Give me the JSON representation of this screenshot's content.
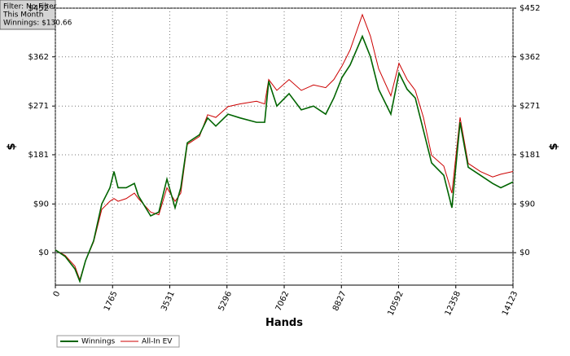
{
  "chart_data": {
    "type": "line",
    "info_lines": [
      "Filter: No Filter",
      "This Month",
      "Winnings: $130.66"
    ],
    "x_label": "Hands",
    "y_label": "$",
    "x": [
      0,
      302,
      603,
      754,
      930,
      1181,
      1432,
      1684,
      1809,
      1935,
      2186,
      2438,
      2563,
      2940,
      3192,
      3443,
      3694,
      3870,
      4071,
      4448,
      4699,
      4951,
      5328,
      5705,
      6207,
      6459,
      6584,
      6835,
      7212,
      7589,
      7966,
      8343,
      8594,
      8846,
      9097,
      9474,
      9725,
      9976,
      10353,
      10605,
      10856,
      11107,
      11359,
      11610,
      11987,
      12238,
      12489,
      12741,
      13118,
      13495,
      13746,
      14123
    ],
    "series": [
      {
        "name": "Winnings",
        "color": "#006400",
        "values": [
          5,
          -7,
          -30,
          -53,
          -15,
          22,
          90,
          120,
          150,
          120,
          120,
          128,
          105,
          68,
          75,
          136,
          83,
          120,
          203,
          218,
          249,
          234,
          256,
          249,
          241,
          241,
          317,
          271,
          294,
          264,
          271,
          256,
          286,
          324,
          347,
          400,
          362,
          302,
          256,
          332,
          302,
          286,
          226,
          166,
          143,
          83,
          241,
          158,
          143,
          128,
          120,
          130.66
        ]
      },
      {
        "name": "All-In EV",
        "color": "#cc0000",
        "values": [
          5,
          -5,
          -25,
          -50,
          -15,
          20,
          80,
          95,
          100,
          95,
          100,
          110,
          100,
          75,
          70,
          120,
          95,
          110,
          200,
          215,
          255,
          250,
          270,
          275,
          280,
          275,
          320,
          300,
          320,
          300,
          310,
          305,
          320,
          345,
          375,
          440,
          400,
          340,
          290,
          350,
          320,
          300,
          250,
          180,
          160,
          110,
          250,
          165,
          150,
          140,
          145,
          150
        ]
      }
    ],
    "xlim": [
      0,
      14123
    ],
    "xticks": [
      0,
      1765,
      3531,
      5296,
      7062,
      8827,
      10592,
      12358,
      14123
    ],
    "ylim": [
      -60,
      452
    ],
    "yticks": [
      {
        "value": 0,
        "label": "$0"
      },
      {
        "value": 90,
        "label": "$90"
      },
      {
        "value": 181,
        "label": "$181"
      },
      {
        "value": 271,
        "label": "$271"
      },
      {
        "value": 362,
        "label": "$362"
      },
      {
        "value": 452,
        "label": "$452"
      }
    ],
    "grid": true,
    "legend": "bottom-left"
  }
}
